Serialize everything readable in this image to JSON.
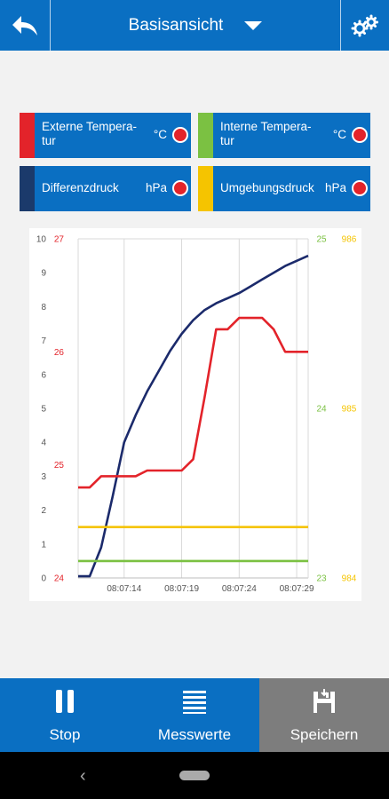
{
  "header": {
    "title": "Basisansicht"
  },
  "tiles": [
    {
      "label_line1": "Externe Tempera-",
      "label_line2": "tur",
      "unit": "°C",
      "stripe_color": "#e3232a"
    },
    {
      "label_line1": "Interne Tempera-",
      "label_line2": "tur",
      "unit": "°C",
      "stripe_color": "#7bc142"
    },
    {
      "label": "Differenzdruck",
      "unit": "hPa",
      "stripe_color": "#1b3a6b"
    },
    {
      "label": "Umgebungsdruck",
      "unit": "hPa",
      "stripe_color": "#f5c400"
    }
  ],
  "chart_data": {
    "type": "line",
    "x": [
      "08:07:10",
      "08:07:11",
      "08:07:12",
      "08:07:13",
      "08:07:14",
      "08:07:15",
      "08:07:16",
      "08:07:17",
      "08:07:18",
      "08:07:19",
      "08:07:20",
      "08:07:21",
      "08:07:22",
      "08:07:23",
      "08:07:24",
      "08:07:25",
      "08:07:26",
      "08:07:27",
      "08:07:28",
      "08:07:29",
      "08:07:30"
    ],
    "xticks": [
      "08:07:14",
      "08:07:19",
      "08:07:24",
      "08:07:29"
    ],
    "axes": [
      {
        "id": "diff",
        "side": "left",
        "range": [
          0,
          10
        ],
        "ticks": [
          "0",
          "1",
          "2",
          "3",
          "4",
          "5",
          "6",
          "7",
          "8",
          "9",
          "10"
        ],
        "color": "#555555"
      },
      {
        "id": "ext",
        "side": "left",
        "range": [
          24,
          27
        ],
        "ticks": [
          "24",
          "25",
          "26",
          "27"
        ],
        "color": "#e3232a"
      },
      {
        "id": "int",
        "side": "right",
        "range": [
          23,
          25
        ],
        "ticks": [
          "23",
          "24",
          "25"
        ],
        "color": "#7bc142"
      },
      {
        "id": "amb",
        "side": "right",
        "range": [
          984,
          986
        ],
        "ticks": [
          "984",
          "985",
          "986"
        ],
        "color": "#f5c400"
      }
    ],
    "series": [
      {
        "axis": "diff",
        "color": "#1b2a6b",
        "values": [
          0.05,
          0.05,
          0.9,
          2.4,
          4.0,
          4.8,
          5.5,
          6.1,
          6.7,
          7.2,
          7.6,
          7.9,
          8.1,
          8.25,
          8.4,
          8.6,
          8.8,
          9.0,
          9.2,
          9.35,
          9.5
        ]
      },
      {
        "axis": "ext",
        "color": "#e3232a",
        "values": [
          24.8,
          24.8,
          24.9,
          24.9,
          24.9,
          24.9,
          24.95,
          24.95,
          24.95,
          24.95,
          25.05,
          25.6,
          26.2,
          26.2,
          26.3,
          26.3,
          26.3,
          26.2,
          26.0,
          26.0,
          26.0
        ]
      },
      {
        "axis": "int",
        "color": "#7bc142",
        "values": [
          23.1,
          23.1,
          23.1,
          23.1,
          23.1,
          23.1,
          23.1,
          23.1,
          23.1,
          23.1,
          23.1,
          23.1,
          23.1,
          23.1,
          23.1,
          23.1,
          23.1,
          23.1,
          23.1,
          23.1,
          23.1
        ]
      },
      {
        "axis": "amb",
        "color": "#f5c400",
        "values": [
          984.3,
          984.3,
          984.3,
          984.3,
          984.3,
          984.3,
          984.3,
          984.3,
          984.3,
          984.3,
          984.3,
          984.3,
          984.3,
          984.3,
          984.3,
          984.3,
          984.3,
          984.3,
          984.3,
          984.3,
          984.3
        ]
      }
    ],
    "grid": true
  },
  "bottom_nav": [
    {
      "label": "Stop",
      "icon": "pause-icon",
      "active": false
    },
    {
      "label": "Messwerte",
      "icon": "list-icon",
      "active": false
    },
    {
      "label": "Speichern",
      "icon": "save-icon",
      "active": true
    }
  ]
}
